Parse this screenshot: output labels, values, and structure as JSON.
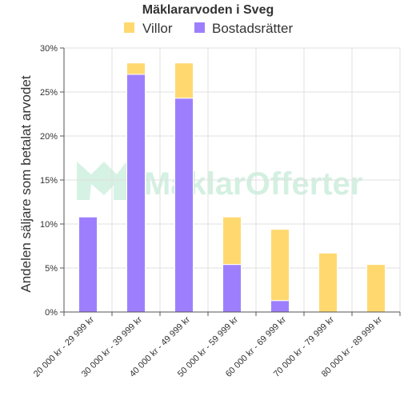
{
  "chart_data": {
    "type": "bar",
    "stacked": true,
    "title": "Mäklararvoden i Sveg",
    "ylabel": "Andelen säljare som betalat arvodet",
    "xlabel": "",
    "ylim": [
      0,
      30
    ],
    "yticks": [
      "0%",
      "5%",
      "10%",
      "15%",
      "20%",
      "25%",
      "30%"
    ],
    "ytick_values": [
      0,
      5,
      10,
      15,
      20,
      25,
      30
    ],
    "grid": true,
    "legend_position": "top",
    "categories": [
      "20 000 kr - 29 999 kr",
      "30 000 kr - 39 999 kr",
      "40 000 kr - 49 999 kr",
      "50 000 kr - 59 999 kr",
      "60 000 kr - 69 999 kr",
      "70 000 kr - 79 999 kr",
      "80 000 kr - 89 999 kr"
    ],
    "series": [
      {
        "name": "Bostadsrätter",
        "color": "#9d7ffe",
        "values": [
          10.8,
          27.0,
          24.3,
          5.4,
          1.3,
          0,
          0
        ]
      },
      {
        "name": "Villor",
        "color": "#ffd970",
        "values": [
          0,
          1.3,
          4.0,
          5.4,
          8.1,
          6.7,
          5.4
        ]
      }
    ],
    "legend_order": [
      "Villor",
      "Bostadsrätter"
    ]
  },
  "watermark": "MäklarOfferter"
}
